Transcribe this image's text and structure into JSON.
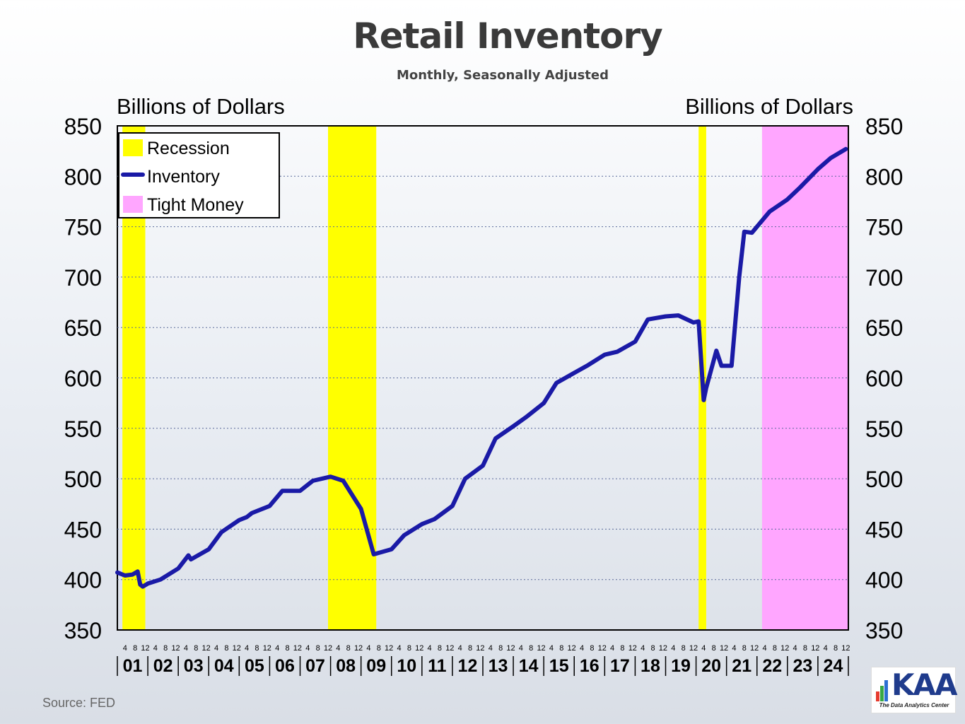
{
  "title": "Retail Inventory",
  "subtitle": "Monthly, Seasonally Adjusted",
  "source": "Source:   FED",
  "logo": {
    "text": "KAA",
    "tagline": "The Data Analytics Center"
  },
  "colors": {
    "inventory": "#1a1aa6",
    "recession": "#ffff00",
    "tight_money": "#ffa6ff"
  },
  "chart_data": {
    "type": "line",
    "ylabel_left": "Billions of Dollars",
    "ylabel_right": "Billions of Dollars",
    "ylim": [
      350,
      850
    ],
    "yticks": [
      350,
      400,
      450,
      500,
      550,
      600,
      650,
      700,
      750,
      800,
      850
    ],
    "xlim": [
      2001.0,
      2025.0
    ],
    "year_labels": [
      "01",
      "02",
      "03",
      "04",
      "05",
      "06",
      "07",
      "08",
      "09",
      "10",
      "11",
      "12",
      "13",
      "14",
      "15",
      "16",
      "17",
      "18",
      "19",
      "20",
      "21",
      "22",
      "23",
      "24"
    ],
    "month_tick_labels": [
      "4",
      "8",
      "12"
    ],
    "grid": "dashed horizontal",
    "legend": {
      "position": "top-left",
      "entries": [
        "Recession",
        "Inventory",
        "Tight Money"
      ]
    },
    "shaded": [
      {
        "name": "Recession",
        "start": "2001-03",
        "end": "2001-11"
      },
      {
        "name": "Recession",
        "start": "2007-12",
        "end": "2009-06"
      },
      {
        "name": "Recession",
        "start": "2020-02",
        "end": "2020-04"
      },
      {
        "name": "Tight Money",
        "start": "2022-03",
        "end": "2024-12"
      }
    ],
    "series": [
      {
        "name": "Inventory",
        "x": [
          "2001-01",
          "2001-04",
          "2001-07",
          "2001-09",
          "2001-10",
          "2001-11",
          "2002-01",
          "2002-06",
          "2003-01",
          "2003-05",
          "2003-06",
          "2004-01",
          "2004-06",
          "2005-01",
          "2005-04",
          "2005-06",
          "2006-01",
          "2006-06",
          "2007-01",
          "2007-06",
          "2008-01",
          "2008-06",
          "2009-01",
          "2009-06",
          "2010-01",
          "2010-06",
          "2011-01",
          "2011-06",
          "2012-01",
          "2012-06",
          "2013-01",
          "2013-06",
          "2014-01",
          "2014-06",
          "2015-01",
          "2015-06",
          "2016-01",
          "2016-06",
          "2017-01",
          "2017-06",
          "2018-01",
          "2018-06",
          "2019-01",
          "2019-06",
          "2019-12",
          "2020-02",
          "2020-04",
          "2020-05",
          "2020-09",
          "2020-11",
          "2021-03",
          "2021-06",
          "2021-08",
          "2021-11",
          "2022-01",
          "2022-06",
          "2023-01",
          "2023-06",
          "2024-01",
          "2024-06",
          "2024-12"
        ],
        "values": [
          407,
          404,
          405,
          408,
          395,
          393,
          396,
          400,
          411,
          424,
          420,
          430,
          447,
          459,
          462,
          466,
          473,
          488,
          488,
          498,
          502,
          498,
          470,
          425,
          430,
          444,
          455,
          460,
          473,
          500,
          513,
          540,
          552,
          561,
          575,
          595,
          605,
          612,
          623,
          626,
          636,
          658,
          661,
          662,
          655,
          656,
          578,
          590,
          627,
          612,
          612,
          700,
          745,
          744,
          750,
          765,
          777,
          789,
          807,
          818,
          827
        ]
      }
    ]
  }
}
